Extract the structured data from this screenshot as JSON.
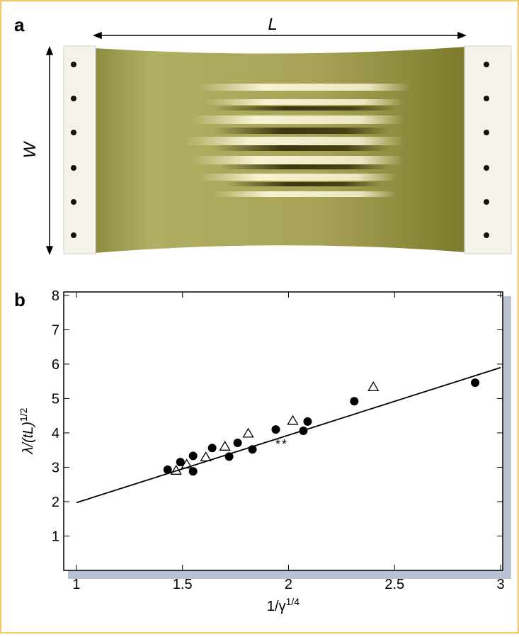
{
  "panel_a": {
    "label": "a",
    "length_label": "L",
    "width_label": "W"
  },
  "chart_data": {
    "type": "scatter",
    "panel_label": "b",
    "x_label": {
      "base": "1/γ",
      "sup": "1/4"
    },
    "y_label": {
      "base": "λ/(tL)",
      "sup": "1/2"
    },
    "xlim": [
      0.94,
      3.01
    ],
    "ylim": [
      0,
      8.1
    ],
    "xticks": [
      1,
      1.5,
      2,
      2.5,
      3
    ],
    "yticks": [
      1,
      2,
      3,
      4,
      5,
      6,
      7,
      8
    ],
    "series": [
      {
        "marker": "circle",
        "color": "#000000",
        "x": [
          1.43,
          1.49,
          1.55,
          1.55,
          1.64,
          1.72,
          1.76,
          1.83,
          1.94,
          2.07,
          2.09,
          2.31,
          2.88
        ],
        "values": [
          2.93,
          3.15,
          3.33,
          2.88,
          3.56,
          3.31,
          3.71,
          3.52,
          4.1,
          4.06,
          4.33,
          4.92,
          5.46
        ]
      },
      {
        "marker": "triangle",
        "color": "#000000",
        "x": [
          1.47,
          1.52,
          1.61,
          1.7,
          1.81,
          2.02,
          2.4
        ],
        "values": [
          2.9,
          3.08,
          3.29,
          3.6,
          3.98,
          4.35,
          5.33
        ]
      },
      {
        "marker": "star",
        "color": "#000000",
        "x": [
          1.95,
          1.98
        ],
        "values": [
          3.73,
          3.73
        ]
      },
      {
        "marker": "line",
        "color": "#000000",
        "x": [
          1,
          3
        ],
        "values": [
          1.97,
          5.9
        ]
      }
    ]
  }
}
